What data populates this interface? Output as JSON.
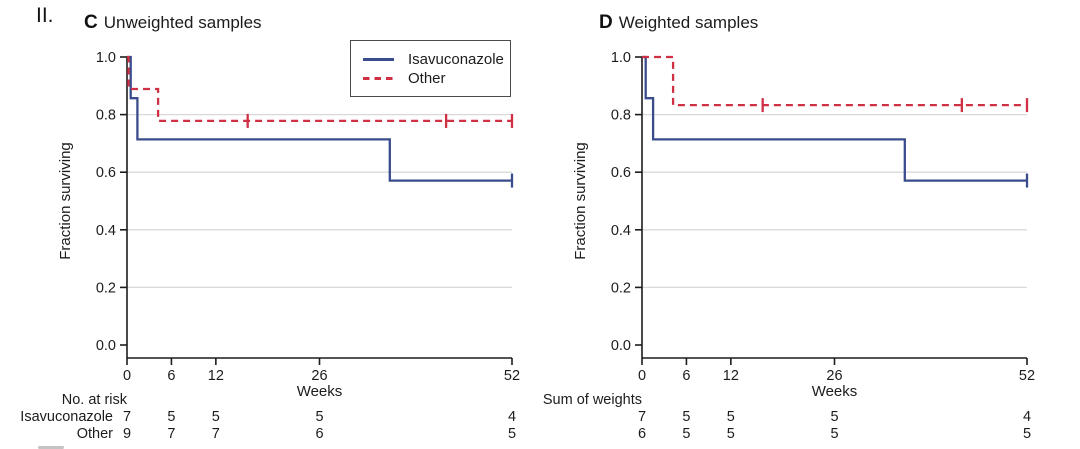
{
  "figure_label": "II.",
  "colors": {
    "isavuconazole": "#3a4c8c",
    "other": "#cf3044",
    "grid": "#d9d9d9",
    "axis": "#1c1c1c"
  },
  "chart_data": [
    {
      "type": "line",
      "subtype": "kaplan-meier-step",
      "panel": "C",
      "title": "Unweighted samples",
      "xlabel": "Weeks",
      "ylabel": "Fraction surviving",
      "xlim": [
        0,
        52
      ],
      "ylim": [
        0.0,
        1.0
      ],
      "xticks": [
        0,
        6,
        12,
        26,
        52
      ],
      "yticks": [
        1.0,
        0.8,
        0.6,
        0.4,
        0.2,
        0.0
      ],
      "grid": "horizontal gridlines at 0.2, 0.4, 0.6, 0.8",
      "legend": {
        "position": "top-right",
        "entries": [
          "Isavuconazole",
          "Other"
        ]
      },
      "series": [
        {
          "name": "Isavuconazole",
          "style": "solid",
          "color_key": "isavuconazole",
          "steps": [
            [
              0,
              1.0
            ],
            [
              0.5,
              0.857
            ],
            [
              1.4,
              0.714
            ],
            [
              35.5,
              0.571
            ]
          ],
          "end_week": 52,
          "censor_marks": [
            [
              52,
              0.571
            ]
          ]
        },
        {
          "name": "Other",
          "style": "dashed",
          "color_key": "other",
          "steps": [
            [
              0,
              1.0
            ],
            [
              0.2,
              0.889
            ],
            [
              4.2,
              0.778
            ]
          ],
          "end_week": 52,
          "censor_marks": [
            [
              16.3,
              0.778
            ],
            [
              43.1,
              0.778
            ],
            [
              52,
              0.778
            ]
          ]
        }
      ],
      "risk_table": {
        "header": "No. at risk",
        "weeks": [
          0,
          6,
          12,
          26,
          52
        ],
        "rows": [
          {
            "label": "Isavuconazole",
            "values": [
              7,
              5,
              5,
              5,
              4
            ]
          },
          {
            "label": "Other",
            "values": [
              9,
              7,
              7,
              6,
              5
            ]
          }
        ]
      }
    },
    {
      "type": "line",
      "subtype": "kaplan-meier-step",
      "panel": "D",
      "title": "Weighted samples",
      "xlabel": "Weeks",
      "ylabel": "Fraction surviving",
      "xlim": [
        0,
        52
      ],
      "ylim": [
        0.0,
        1.0
      ],
      "xticks": [
        0,
        6,
        12,
        26,
        52
      ],
      "yticks": [
        1.0,
        0.8,
        0.6,
        0.4,
        0.2,
        0.0
      ],
      "grid": "horizontal gridlines at 0.2, 0.4, 0.6, 0.8",
      "legend": null,
      "series": [
        {
          "name": "Isavuconazole",
          "style": "solid",
          "color_key": "isavuconazole",
          "steps": [
            [
              0,
              1.0
            ],
            [
              0.5,
              0.857
            ],
            [
              1.5,
              0.714
            ],
            [
              35.5,
              0.571
            ]
          ],
          "end_week": 52,
          "censor_marks": [
            [
              52,
              0.571
            ]
          ]
        },
        {
          "name": "Other",
          "style": "dashed",
          "color_key": "other",
          "steps": [
            [
              0,
              1.0
            ],
            [
              4.2,
              0.833
            ]
          ],
          "end_week": 52,
          "censor_marks": [
            [
              16.3,
              0.833
            ],
            [
              43.2,
              0.833
            ],
            [
              52,
              0.833
            ]
          ]
        }
      ],
      "risk_table": {
        "header": "Sum of weights",
        "weeks": [
          0,
          6,
          12,
          26,
          52
        ],
        "rows": [
          {
            "label": "",
            "values": [
              7,
              5,
              5,
              5,
              4
            ]
          },
          {
            "label": "",
            "values": [
              6,
              5,
              5,
              5,
              5
            ]
          }
        ]
      }
    }
  ]
}
